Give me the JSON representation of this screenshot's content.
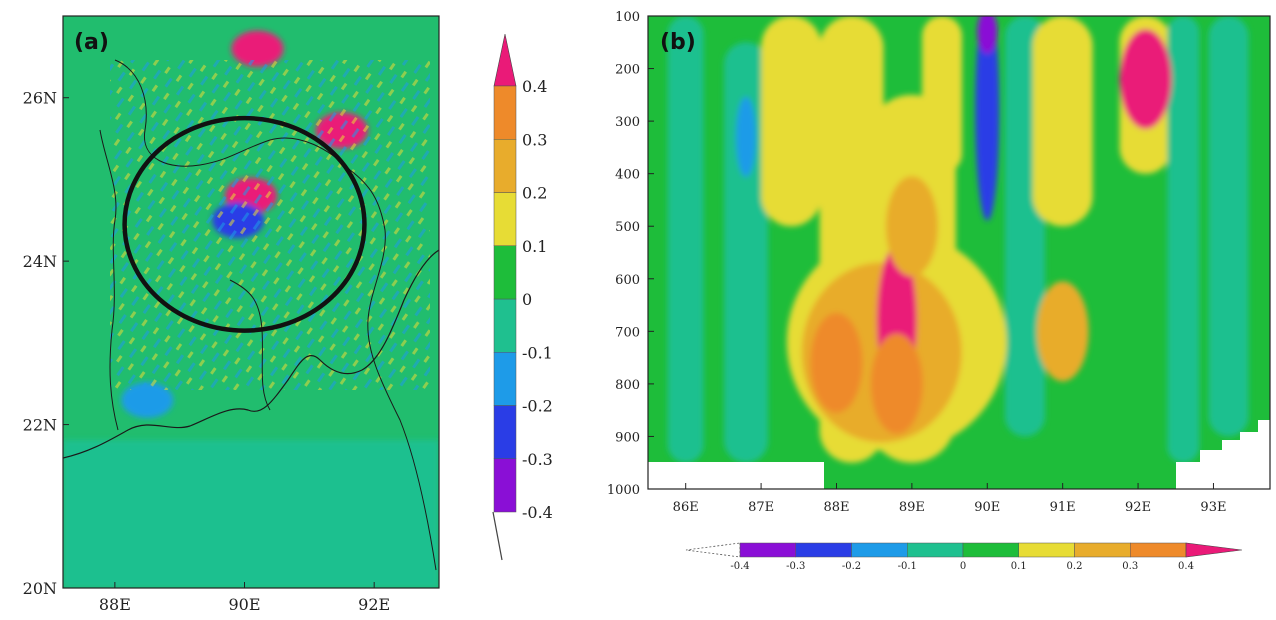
{
  "palette": {
    "bins": [
      {
        "label": "-0.4",
        "color": "#8a0fd6"
      },
      {
        "label": "-0.3",
        "color": "#2a3de6"
      },
      {
        "label": "-0.2",
        "color": "#1e9be8"
      },
      {
        "label": "-0.1",
        "color": "#1fc08f"
      },
      {
        "label": "0",
        "color": "#1ebd3a"
      },
      {
        "label": "0.1",
        "color": "#e7dc35"
      },
      {
        "label": "0.2",
        "color": "#e8ac2c"
      },
      {
        "label": "0.3",
        "color": "#ee8a2a"
      },
      {
        "label": "0.4",
        "color": "#ea1a78"
      }
    ],
    "under_color": "#ffffff",
    "over_color": "#ea1a78",
    "background": "#21bd6e",
    "land_outline": "#1a1a1a"
  },
  "chart_data": [
    {
      "type": "heatmap",
      "panel_label": "(a)",
      "title": "",
      "xlabel": "",
      "ylabel": "",
      "xlim": [
        87.2,
        93.0
      ],
      "ylim": [
        20.0,
        27.0
      ],
      "x_ticks": [
        {
          "value": 88,
          "label": "88E"
        },
        {
          "value": 90,
          "label": "90E"
        },
        {
          "value": 92,
          "label": "92E"
        }
      ],
      "y_ticks": [
        {
          "value": 20,
          "label": "20N"
        },
        {
          "value": 22,
          "label": "22N"
        },
        {
          "value": 24,
          "label": "24N"
        },
        {
          "value": 26,
          "label": "26N"
        }
      ],
      "colorbar": {
        "orientation": "vertical",
        "labels": [
          "-0.4",
          "-0.3",
          "-0.2",
          "-0.1",
          "0",
          "0.1",
          "0.2",
          "0.3",
          "0.4"
        ]
      },
      "annotations": [
        {
          "type": "ellipse",
          "center_lon": 90.0,
          "center_lat": 24.45,
          "radius_lon": 1.85,
          "radius_lat": 1.3
        }
      ],
      "features": [
        {
          "type": "region",
          "lon": 90.1,
          "lat": 24.8,
          "level": "0.4"
        },
        {
          "type": "region",
          "lon": 89.9,
          "lat": 24.5,
          "level": "-0.3"
        },
        {
          "type": "region",
          "lon": 91.5,
          "lat": 25.6,
          "level": "0.4"
        },
        {
          "type": "region",
          "lon": 90.2,
          "lat": 26.6,
          "level": "0.4"
        },
        {
          "type": "region",
          "lon": 88.5,
          "lat": 22.3,
          "level": "-0.2"
        },
        {
          "type": "region",
          "lon": 90.0,
          "lat": 20.8,
          "level": "-0.1"
        }
      ]
    },
    {
      "type": "heatmap",
      "panel_label": "(b)",
      "title": "",
      "xlabel": "",
      "ylabel": "",
      "xlim": [
        85.5,
        93.75
      ],
      "ylim": [
        100,
        1000
      ],
      "y_inverted": true,
      "x_ticks": [
        {
          "value": 86,
          "label": "86E"
        },
        {
          "value": 87,
          "label": "87E"
        },
        {
          "value": 88,
          "label": "88E"
        },
        {
          "value": 89,
          "label": "89E"
        },
        {
          "value": 90,
          "label": "90E"
        },
        {
          "value": 91,
          "label": "91E"
        },
        {
          "value": 92,
          "label": "92E"
        },
        {
          "value": 93,
          "label": "93E"
        }
      ],
      "y_ticks": [
        {
          "value": 100,
          "label": "100"
        },
        {
          "value": 200,
          "label": "200"
        },
        {
          "value": 300,
          "label": "300"
        },
        {
          "value": 400,
          "label": "400"
        },
        {
          "value": 500,
          "label": "500"
        },
        {
          "value": 600,
          "label": "600"
        },
        {
          "value": 700,
          "label": "700"
        },
        {
          "value": 800,
          "label": "800"
        },
        {
          "value": 900,
          "label": "900"
        },
        {
          "value": 1000,
          "label": "1000"
        }
      ],
      "colorbar": {
        "orientation": "horizontal",
        "labels": [
          "-0.4",
          "-0.3",
          "-0.2",
          "-0.1",
          "0",
          "0.1",
          "0.2",
          "0.3",
          "0.4"
        ]
      },
      "features": [
        {
          "type": "region",
          "lon": 88.8,
          "lat": 680,
          "level": "0.4"
        },
        {
          "type": "region",
          "lon": 88.0,
          "lat": 760,
          "level": "0.3"
        },
        {
          "type": "region",
          "lon": 88.8,
          "lat": 800,
          "level": "0.3"
        },
        {
          "type": "region",
          "lon": 89.0,
          "lat": 500,
          "level": "0.2"
        },
        {
          "type": "region",
          "lon": 90.0,
          "lat": 280,
          "level": "-0.3"
        },
        {
          "type": "region",
          "lon": 92.1,
          "lat": 220,
          "level": "0.4"
        },
        {
          "type": "region",
          "lon": 86.8,
          "lat": 330,
          "level": "-0.2"
        },
        {
          "type": "region",
          "lon": 90.0,
          "lat": 130,
          "level": "-0.4"
        },
        {
          "type": "region",
          "lon": 91.0,
          "lat": 700,
          "level": "0.2"
        }
      ]
    }
  ]
}
